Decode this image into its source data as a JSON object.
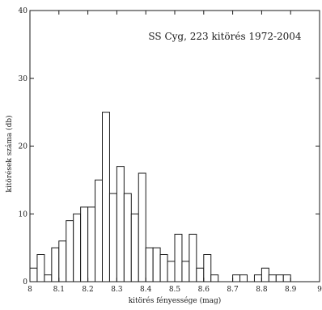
{
  "chart_data": {
    "type": "bar",
    "annotation": "SS Cyg, 223 kitörés 1972-2004",
    "xlabel": "kitörés fényessége (mag)",
    "ylabel": "kitörések száma (db)",
    "xlim": [
      8.0,
      9.0
    ],
    "ylim": [
      0,
      40
    ],
    "x_ticks": [
      8.0,
      8.1,
      8.2,
      8.3,
      8.4,
      8.5,
      8.6,
      8.7,
      8.8,
      8.9,
      9.0
    ],
    "x_tick_labels": [
      "8",
      "8.1",
      "8.2",
      "8.3",
      "8.4",
      "8.5",
      "8.6",
      "8.7",
      "8.8",
      "8.9",
      "9"
    ],
    "y_ticks": [
      0,
      10,
      20,
      30,
      40
    ],
    "y_tick_labels": [
      "0",
      "10",
      "20",
      "30",
      "40"
    ],
    "bin_width": 0.025,
    "bin_starts": [
      8.0,
      8.025,
      8.05,
      8.075,
      8.1,
      8.125,
      8.15,
      8.175,
      8.2,
      8.225,
      8.25,
      8.275,
      8.3,
      8.325,
      8.35,
      8.375,
      8.4,
      8.425,
      8.45,
      8.475,
      8.5,
      8.525,
      8.55,
      8.575,
      8.6,
      8.625,
      8.65,
      8.675,
      8.7,
      8.725,
      8.75,
      8.775,
      8.8,
      8.825,
      8.85,
      8.875,
      8.9,
      8.925,
      8.95,
      8.975
    ],
    "values": [
      2,
      4,
      1,
      5,
      6,
      9,
      10,
      11,
      11,
      15,
      25,
      13,
      17,
      13,
      10,
      16,
      5,
      5,
      4,
      3,
      7,
      3,
      7,
      2,
      4,
      1,
      0,
      0,
      1,
      1,
      0,
      1,
      2,
      1,
      1,
      1,
      0,
      0,
      0,
      0
    ],
    "grid": false,
    "colors": {
      "bar_fill": "#ffffff",
      "bar_stroke": "#1a1a1a",
      "axis": "#1a1a1a",
      "background": "#ffffff"
    }
  }
}
